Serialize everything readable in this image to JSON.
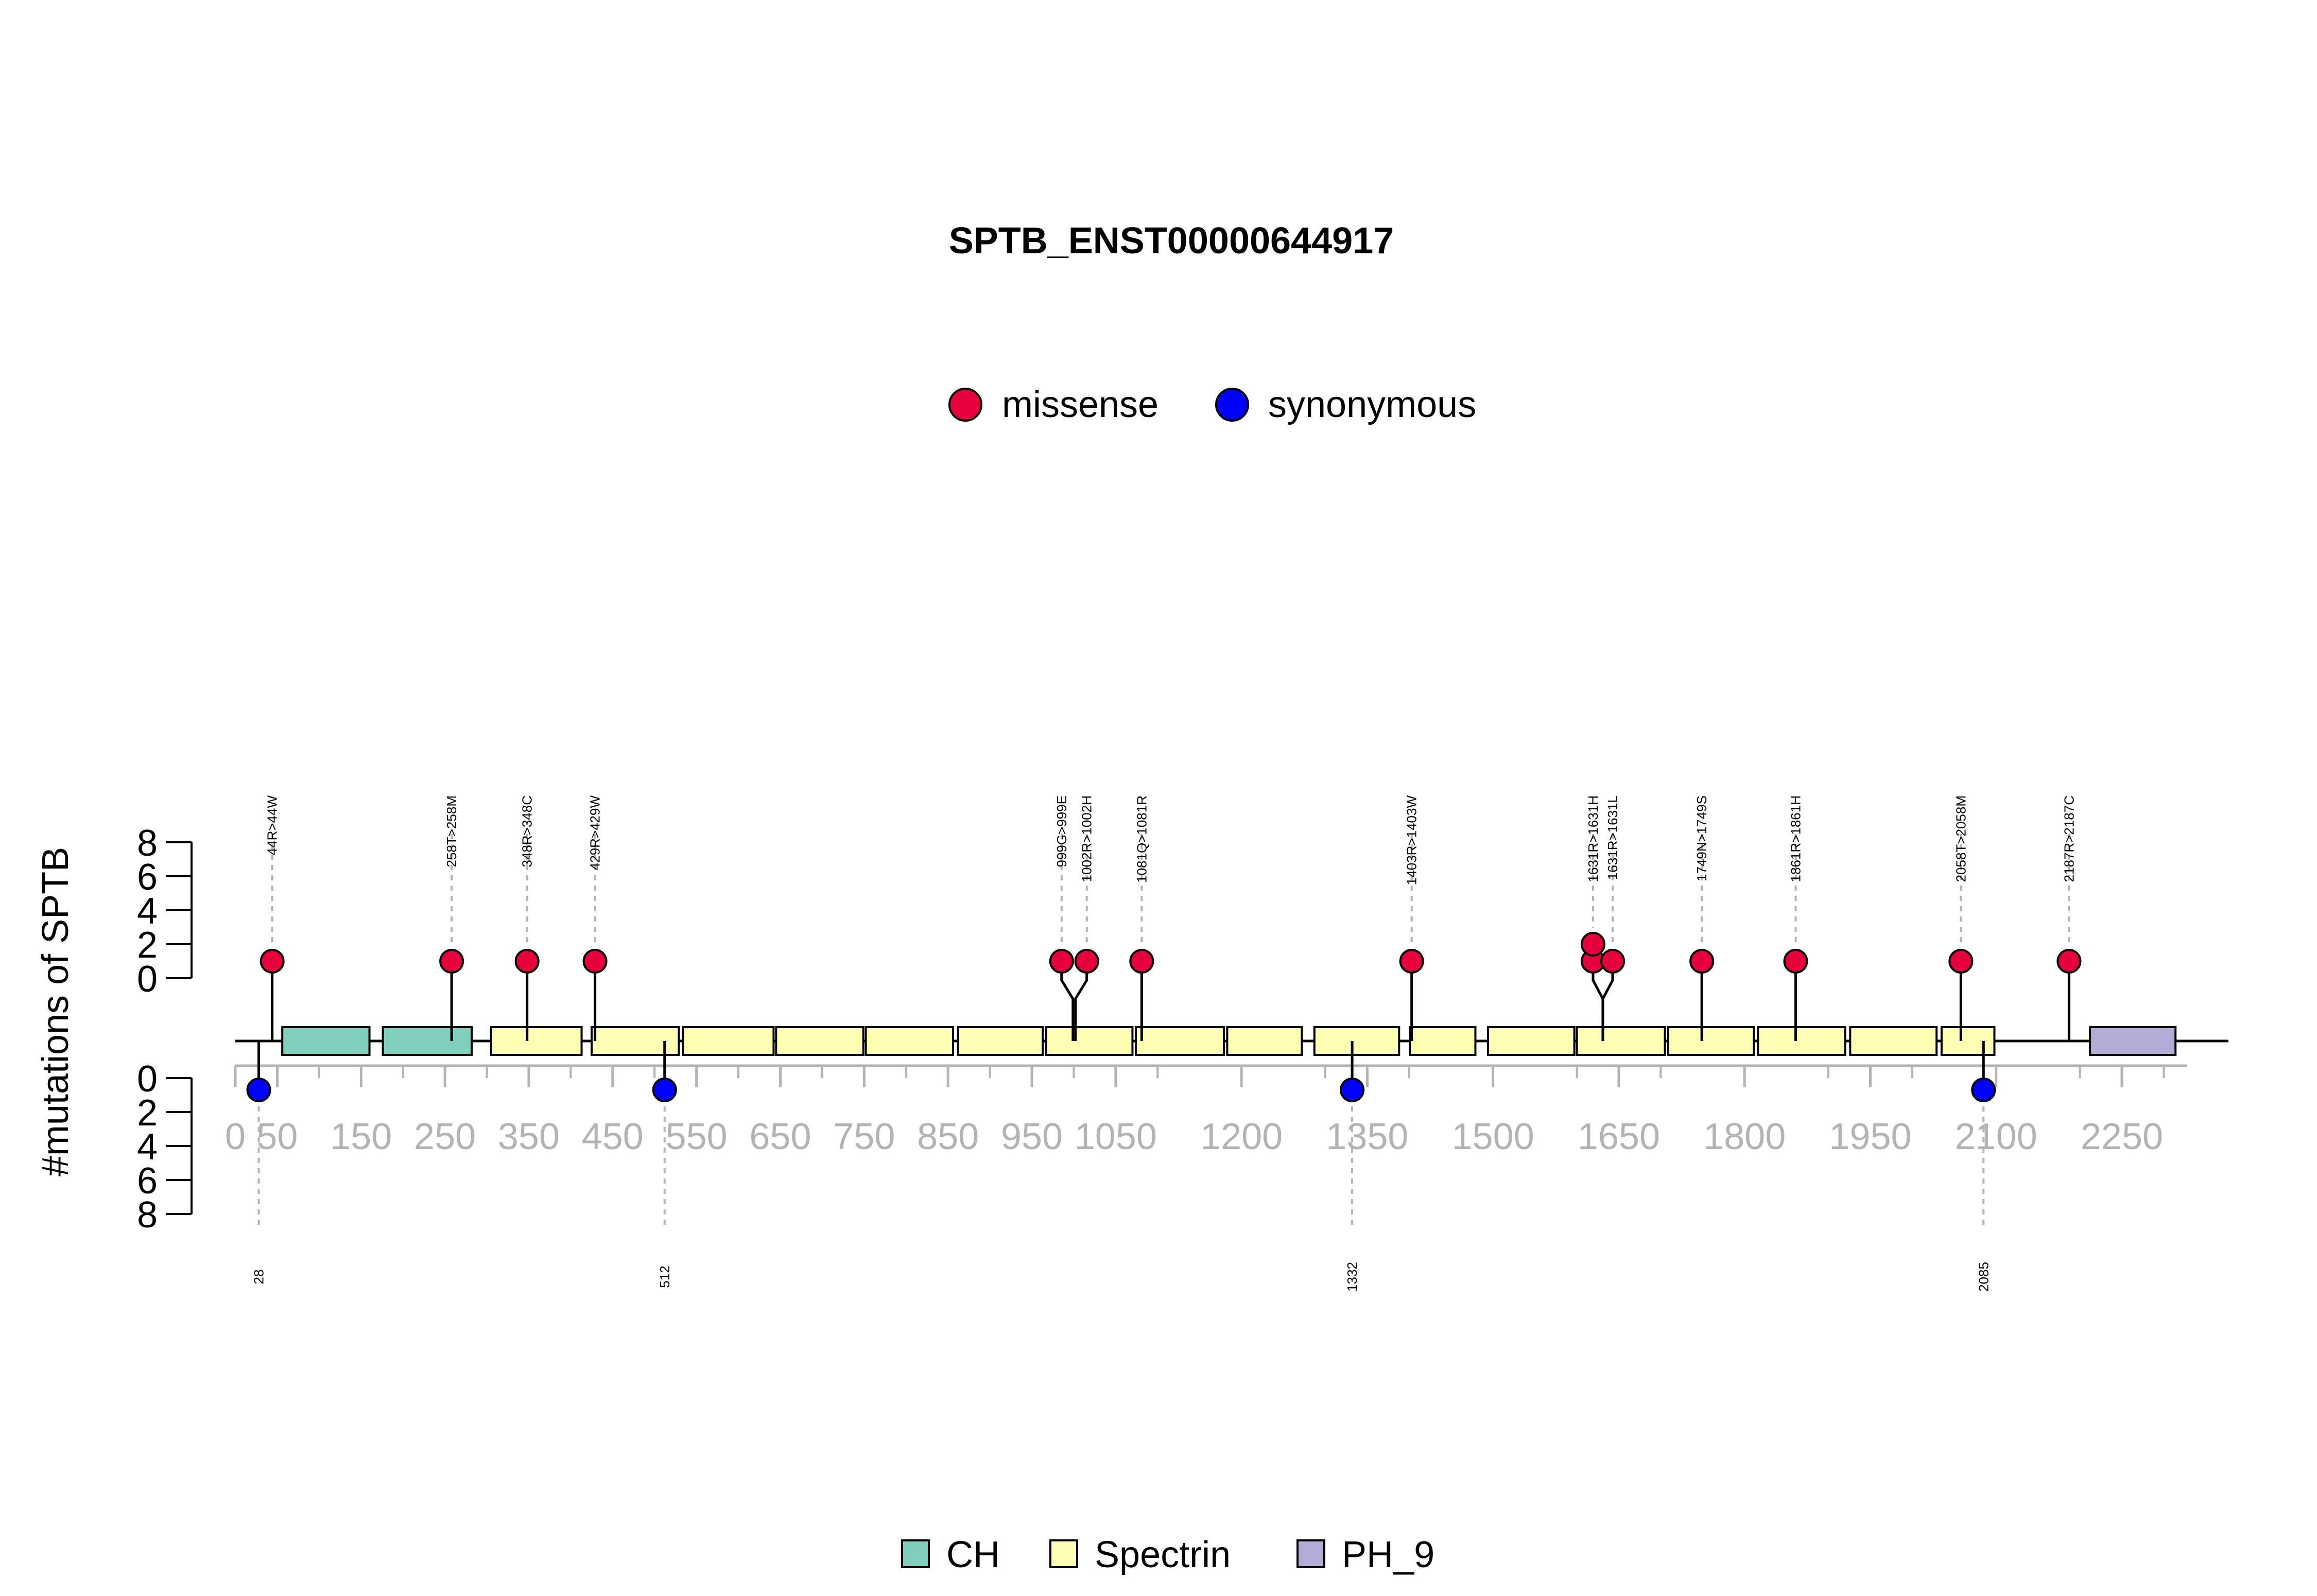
{
  "chart_data": {
    "type": "lollipop",
    "title": "SPTB_ENST00000644917",
    "ylabel": "#mutations of SPTB",
    "y_ticks": [
      "0",
      "2",
      "4",
      "6",
      "8"
    ],
    "ylim": [
      0,
      8
    ],
    "x_ticks": [
      "0",
      "50",
      "150",
      "250",
      "350",
      "450",
      "550",
      "650",
      "750",
      "850",
      "950",
      "1050",
      "1200",
      "1350",
      "1500",
      "1650",
      "1800",
      "1950",
      "2100",
      "2250"
    ],
    "xlim": [
      0,
      2328
    ],
    "mutation_legend": [
      {
        "name": "missense",
        "color": "#e6003c"
      },
      {
        "name": "synonymous",
        "color": "#0000ff"
      }
    ],
    "domain_legend": [
      {
        "name": "CH",
        "color": "#7fcdbb"
      },
      {
        "name": "Spectrin",
        "color": "#ffffb3"
      },
      {
        "name": "PH_9",
        "color": "#b3acd6"
      }
    ],
    "domains": [
      {
        "name": "CH",
        "start": 56,
        "end": 160
      },
      {
        "name": "CH",
        "start": 176,
        "end": 282
      },
      {
        "name": "Spectrin",
        "start": 305,
        "end": 413
      },
      {
        "name": "Spectrin",
        "start": 425,
        "end": 529
      },
      {
        "name": "Spectrin",
        "start": 534,
        "end": 642
      },
      {
        "name": "Spectrin",
        "start": 645,
        "end": 749
      },
      {
        "name": "Spectrin",
        "start": 752,
        "end": 856
      },
      {
        "name": "Spectrin",
        "start": 862,
        "end": 963
      },
      {
        "name": "Spectrin",
        "start": 967,
        "end": 1070
      },
      {
        "name": "Spectrin",
        "start": 1074,
        "end": 1179
      },
      {
        "name": "Spectrin",
        "start": 1183,
        "end": 1272
      },
      {
        "name": "Spectrin",
        "start": 1287,
        "end": 1388
      },
      {
        "name": "Spectrin",
        "start": 1401,
        "end": 1479
      },
      {
        "name": "Spectrin",
        "start": 1494,
        "end": 1597
      },
      {
        "name": "Spectrin",
        "start": 1600,
        "end": 1705
      },
      {
        "name": "Spectrin",
        "start": 1709,
        "end": 1811
      },
      {
        "name": "Spectrin",
        "start": 1816,
        "end": 1920
      },
      {
        "name": "Spectrin",
        "start": 1926,
        "end": 2029
      },
      {
        "name": "Spectrin",
        "start": 2035,
        "end": 2098
      },
      {
        "name": "PH_9",
        "start": 2212,
        "end": 2314
      }
    ],
    "missense": [
      {
        "pos": 44,
        "count": 1,
        "label": "44R>44W"
      },
      {
        "pos": 258,
        "count": 1,
        "label": "258T>258M"
      },
      {
        "pos": 348,
        "count": 1,
        "label": "348R>348C"
      },
      {
        "pos": 429,
        "count": 1,
        "label": "429R>429W"
      },
      {
        "pos": 999,
        "count": 1,
        "label": "999G>999E"
      },
      {
        "pos": 1002,
        "count": 1,
        "label": "1002R>1002H"
      },
      {
        "pos": 1081,
        "count": 1,
        "label": "1081Q>1081R"
      },
      {
        "pos": 1403,
        "count": 1,
        "label": "1403R>1403W"
      },
      {
        "pos": 1631,
        "count": 2,
        "label": "1631R>1631H"
      },
      {
        "pos": 1631,
        "count": 1,
        "label": "1631R>1631L"
      },
      {
        "pos": 1749,
        "count": 1,
        "label": "1749N>1749S"
      },
      {
        "pos": 1861,
        "count": 1,
        "label": "1861R>1861H"
      },
      {
        "pos": 2058,
        "count": 1,
        "label": "2058T>2058M"
      },
      {
        "pos": 2187,
        "count": 1,
        "label": "2187R>2187C"
      }
    ],
    "synonymous": [
      {
        "pos": 28,
        "count": 1,
        "label": "28"
      },
      {
        "pos": 512,
        "count": 1,
        "label": "512"
      },
      {
        "pos": 1332,
        "count": 1,
        "label": "1332"
      },
      {
        "pos": 2085,
        "count": 1,
        "label": "2085"
      }
    ]
  }
}
